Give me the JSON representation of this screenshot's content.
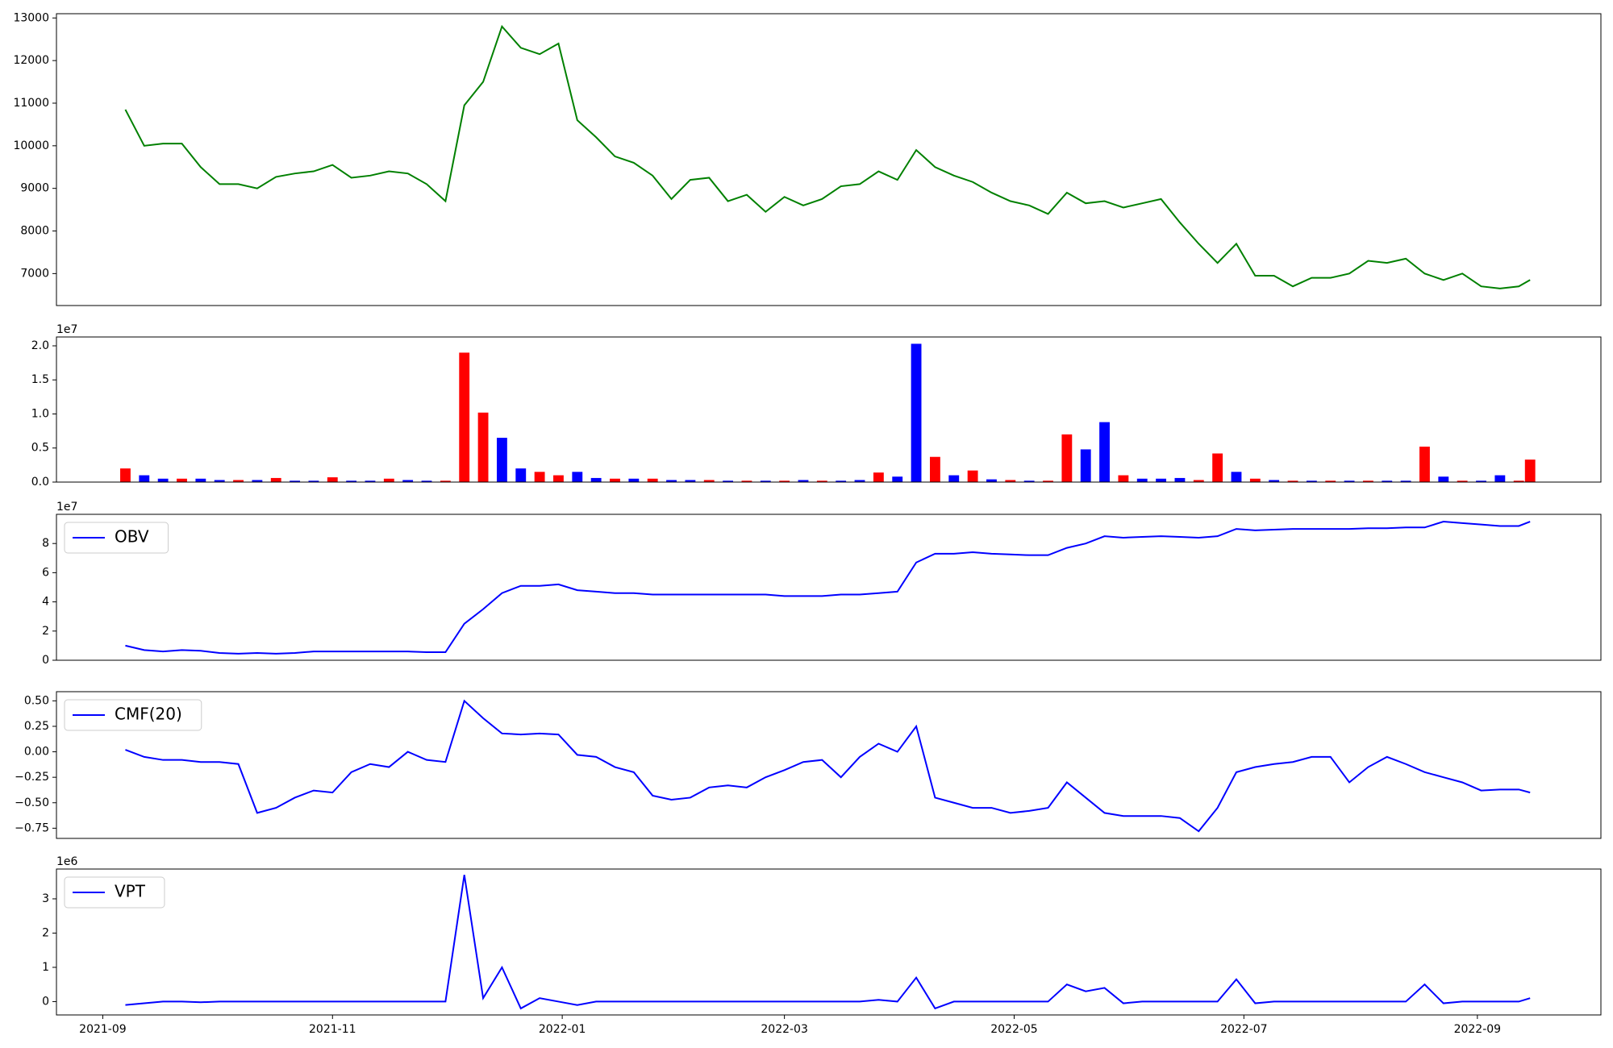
{
  "chart_data": [
    {
      "type": "line",
      "xlim": [
        -12.3,
        397.8
      ],
      "ylim": [
        6250,
        13100
      ],
      "yticks": [
        7000,
        8000,
        9000,
        10000,
        11000,
        12000,
        13000
      ],
      "x": [
        6,
        11,
        16,
        21,
        26,
        31,
        36,
        41,
        46,
        51,
        56,
        61,
        66,
        71,
        76,
        81,
        86,
        91,
        96,
        101,
        106,
        111,
        116,
        121,
        126,
        131,
        136,
        141,
        146,
        151,
        156,
        161,
        166,
        171,
        176,
        181,
        186,
        191,
        196,
        201,
        206,
        211,
        216,
        221,
        226,
        231,
        236,
        241,
        246,
        251,
        256,
        261,
        266,
        271,
        276,
        281,
        286,
        291,
        296,
        301,
        306,
        311,
        316,
        321,
        326,
        331,
        336,
        341,
        346,
        351,
        356,
        361,
        366,
        371,
        376,
        379
      ],
      "series": [
        {
          "color": "#008000",
          "values": [
            10850,
            10000,
            10050,
            10050,
            9500,
            9100,
            9100,
            9000,
            9270,
            9350,
            9400,
            9550,
            9250,
            9300,
            9400,
            9350,
            9100,
            8700,
            10950,
            11500,
            12800,
            12300,
            12150,
            12400,
            10600,
            10200,
            9750,
            9600,
            9300,
            8750,
            9200,
            9250,
            8700,
            8850,
            8450,
            8800,
            8600,
            8750,
            9050,
            9100,
            9400,
            9200,
            9900,
            9500,
            9300,
            9150,
            8900,
            8700,
            8600,
            8400,
            8900,
            8650,
            8700,
            8550,
            8650,
            8750,
            8200,
            7700,
            7250,
            7700,
            6950,
            6950,
            6700,
            6900,
            6900,
            7000,
            7300,
            7250,
            7350,
            7000,
            6850,
            7000,
            6700,
            6650,
            6700,
            6850
          ]
        }
      ]
    },
    {
      "type": "bar",
      "offset_label": "1e7",
      "xlim": [
        -12.3,
        397.8
      ],
      "ylim": [
        0,
        2.13
      ],
      "yticks": [
        {
          "value": 0,
          "label": "0.0"
        },
        0.5,
        {
          "value": 1,
          "label": "1.0"
        },
        1.5,
        {
          "value": 2,
          "label": "2.0"
        }
      ],
      "x": [
        6,
        11,
        16,
        21,
        26,
        31,
        36,
        41,
        46,
        51,
        56,
        61,
        66,
        71,
        76,
        81,
        86,
        91,
        96,
        101,
        106,
        111,
        116,
        121,
        126,
        131,
        136,
        141,
        146,
        151,
        156,
        161,
        166,
        171,
        176,
        181,
        186,
        191,
        196,
        201,
        206,
        211,
        216,
        221,
        226,
        231,
        236,
        241,
        246,
        251,
        256,
        261,
        266,
        271,
        276,
        281,
        286,
        291,
        296,
        301,
        306,
        311,
        316,
        321,
        326,
        331,
        336,
        341,
        346,
        351,
        356,
        361,
        366,
        371,
        376,
        379
      ],
      "values": [
        0.2,
        0.1,
        0.05,
        0.05,
        0.05,
        0.03,
        0.03,
        0.03,
        0.06,
        0.02,
        0.02,
        0.07,
        0.02,
        0.02,
        0.05,
        0.03,
        0.02,
        0.02,
        1.9,
        1.02,
        0.65,
        0.2,
        0.15,
        0.1,
        0.15,
        0.06,
        0.05,
        0.05,
        0.05,
        0.03,
        0.03,
        0.03,
        0.02,
        0.02,
        0.02,
        0.02,
        0.03,
        0.02,
        0.02,
        0.03,
        0.14,
        0.08,
        2.03,
        0.37,
        0.1,
        0.17,
        0.04,
        0.03,
        0.02,
        0.02,
        0.7,
        0.48,
        0.88,
        0.1,
        0.05,
        0.05,
        0.06,
        0.03,
        0.42,
        0.15,
        0.05,
        0.03,
        0.02,
        0.02,
        0.02,
        0.02,
        0.02,
        0.02,
        0.02,
        0.52,
        0.08,
        0.02,
        0.02,
        0.1,
        0.02,
        0.33
      ],
      "colors": [
        "red",
        "blue",
        "blue",
        "red",
        "blue",
        "blue",
        "red",
        "blue",
        "red",
        "blue",
        "blue",
        "red",
        "blue",
        "blue",
        "red",
        "blue",
        "blue",
        "red",
        "red",
        "red",
        "blue",
        "blue",
        "red",
        "red",
        "blue",
        "blue",
        "red",
        "blue",
        "red",
        "blue",
        "blue",
        "red",
        "blue",
        "red",
        "blue",
        "red",
        "blue",
        "red",
        "blue",
        "blue",
        "red",
        "blue",
        "blue",
        "red",
        "blue",
        "red",
        "blue",
        "red",
        "blue",
        "red",
        "red",
        "blue",
        "blue",
        "red",
        "blue",
        "blue",
        "blue",
        "red",
        "red",
        "blue",
        "red",
        "blue",
        "red",
        "blue",
        "red",
        "blue",
        "red",
        "blue",
        "blue",
        "red",
        "blue",
        "red",
        "blue",
        "blue",
        "red",
        "red"
      ]
    },
    {
      "type": "line",
      "offset_label": "1e7",
      "legend": "upper left",
      "xlim": [
        -12.3,
        397.8
      ],
      "ylim": [
        0,
        10
      ],
      "yticks": [
        0,
        2,
        4,
        6,
        8
      ],
      "x": [
        6,
        11,
        16,
        21,
        26,
        31,
        36,
        41,
        46,
        51,
        56,
        61,
        66,
        71,
        76,
        81,
        86,
        91,
        96,
        101,
        106,
        111,
        116,
        121,
        126,
        131,
        136,
        141,
        146,
        151,
        156,
        161,
        166,
        171,
        176,
        181,
        186,
        191,
        196,
        201,
        206,
        211,
        216,
        221,
        226,
        231,
        236,
        241,
        246,
        251,
        256,
        261,
        266,
        271,
        276,
        281,
        286,
        291,
        296,
        301,
        306,
        311,
        316,
        321,
        326,
        331,
        336,
        341,
        346,
        351,
        356,
        361,
        366,
        371,
        376,
        379
      ],
      "series": [
        {
          "name": "OBV",
          "color": "#0000ff",
          "values": [
            1.0,
            0.7,
            0.6,
            0.7,
            0.65,
            0.5,
            0.45,
            0.5,
            0.45,
            0.5,
            0.6,
            0.6,
            0.6,
            0.6,
            0.6,
            0.6,
            0.55,
            0.55,
            2.5,
            3.5,
            4.6,
            5.1,
            5.1,
            5.2,
            4.8,
            4.7,
            4.6,
            4.6,
            4.5,
            4.5,
            4.5,
            4.5,
            4.5,
            4.5,
            4.5,
            4.4,
            4.4,
            4.4,
            4.5,
            4.5,
            4.6,
            4.7,
            6.7,
            7.3,
            7.3,
            7.4,
            7.3,
            7.25,
            7.2,
            7.2,
            7.7,
            8.0,
            8.5,
            8.4,
            8.45,
            8.5,
            8.45,
            8.4,
            8.5,
            9.0,
            8.9,
            8.95,
            9.0,
            9.0,
            9.0,
            9.0,
            9.05,
            9.05,
            9.1,
            9.1,
            9.5,
            9.4,
            9.3,
            9.2,
            9.2,
            9.5
          ]
        }
      ]
    },
    {
      "type": "line",
      "legend": "upper left",
      "xlim": [
        -12.3,
        397.8
      ],
      "ylim": [
        -0.85,
        0.59
      ],
      "yticks": [
        {
          "value": -0.75,
          "label": "−0.75"
        },
        {
          "value": -0.5,
          "label": "−0.50"
        },
        {
          "value": -0.25,
          "label": "−0.25"
        },
        {
          "value": 0,
          "label": "0.00"
        },
        0.25,
        {
          "value": 0.5,
          "label": "0.50"
        }
      ],
      "x": [
        6,
        11,
        16,
        21,
        26,
        31,
        36,
        41,
        46,
        51,
        56,
        61,
        66,
        71,
        76,
        81,
        86,
        91,
        96,
        101,
        106,
        111,
        116,
        121,
        126,
        131,
        136,
        141,
        146,
        151,
        156,
        161,
        166,
        171,
        176,
        181,
        186,
        191,
        196,
        201,
        206,
        211,
        216,
        221,
        226,
        231,
        236,
        241,
        246,
        251,
        256,
        261,
        266,
        271,
        276,
        281,
        286,
        291,
        296,
        301,
        306,
        311,
        316,
        321,
        326,
        331,
        336,
        341,
        346,
        351,
        356,
        361,
        366,
        371,
        376,
        379
      ],
      "series": [
        {
          "name": "CMF(20)",
          "color": "#0000ff",
          "values": [
            0.02,
            -0.05,
            -0.08,
            -0.08,
            -0.1,
            -0.1,
            -0.12,
            -0.6,
            -0.55,
            -0.45,
            -0.38,
            -0.4,
            -0.2,
            -0.12,
            -0.15,
            0.0,
            -0.08,
            -0.1,
            0.5,
            0.33,
            0.18,
            0.17,
            0.18,
            0.17,
            -0.03,
            -0.05,
            -0.15,
            -0.2,
            -0.43,
            -0.47,
            -0.45,
            -0.35,
            -0.33,
            -0.35,
            -0.25,
            -0.18,
            -0.1,
            -0.08,
            -0.25,
            -0.05,
            0.08,
            0.0,
            0.25,
            -0.45,
            -0.5,
            -0.55,
            -0.55,
            -0.6,
            -0.58,
            -0.55,
            -0.3,
            -0.45,
            -0.6,
            -0.63,
            -0.63,
            -0.63,
            -0.65,
            -0.78,
            -0.55,
            -0.2,
            -0.15,
            -0.12,
            -0.1,
            -0.05,
            -0.05,
            -0.3,
            -0.15,
            -0.05,
            -0.12,
            -0.2,
            -0.25,
            -0.3,
            -0.38,
            -0.37,
            -0.37,
            -0.4
          ]
        }
      ]
    },
    {
      "type": "line",
      "offset_label": "1e6",
      "legend": "upper left",
      "xlim": [
        -12.3,
        397.8
      ],
      "ylim": [
        -0.39,
        3.87
      ],
      "yticks": [
        0,
        1,
        2,
        3
      ],
      "xticks": [
        {
          "value": 0,
          "label": "2021-09"
        },
        {
          "value": 61,
          "label": "2021-11"
        },
        {
          "value": 122,
          "label": "2022-01"
        },
        {
          "value": 181,
          "label": "2022-03"
        },
        {
          "value": 242,
          "label": "2022-05"
        },
        {
          "value": 303,
          "label": "2022-07"
        },
        {
          "value": 365,
          "label": "2022-09"
        }
      ],
      "x": [
        6,
        11,
        16,
        21,
        26,
        31,
        36,
        41,
        46,
        51,
        56,
        61,
        66,
        71,
        76,
        81,
        86,
        91,
        96,
        101,
        106,
        111,
        116,
        121,
        126,
        131,
        136,
        141,
        146,
        151,
        156,
        161,
        166,
        171,
        176,
        181,
        186,
        191,
        196,
        201,
        206,
        211,
        216,
        221,
        226,
        231,
        236,
        241,
        246,
        251,
        256,
        261,
        266,
        271,
        276,
        281,
        286,
        291,
        296,
        301,
        306,
        311,
        316,
        321,
        326,
        331,
        336,
        341,
        346,
        351,
        356,
        361,
        366,
        371,
        376,
        379
      ],
      "series": [
        {
          "name": "VPT",
          "color": "#0000ff",
          "values": [
            -0.1,
            -0.05,
            0.0,
            0.0,
            -0.02,
            0.0,
            0.0,
            0.0,
            0.0,
            0.0,
            0.0,
            0.0,
            0.0,
            0.0,
            0.0,
            0.0,
            0.0,
            0.0,
            3.7,
            0.1,
            1.0,
            -0.2,
            0.1,
            0.0,
            -0.1,
            0.0,
            0.0,
            0.0,
            0.0,
            0.0,
            0.0,
            0.0,
            0.0,
            0.0,
            0.0,
            0.0,
            0.0,
            0.0,
            0.0,
            0.0,
            0.05,
            0.0,
            0.7,
            -0.2,
            0.0,
            0.0,
            0.0,
            0.0,
            0.0,
            0.0,
            0.5,
            0.3,
            0.4,
            -0.05,
            0.0,
            0.0,
            0.0,
            0.0,
            0.0,
            0.65,
            -0.05,
            0.0,
            0.0,
            0.0,
            0.0,
            0.0,
            0.0,
            0.0,
            0.0,
            0.5,
            -0.05,
            0.0,
            0.0,
            0.0,
            0.0,
            0.1
          ]
        }
      ]
    }
  ]
}
